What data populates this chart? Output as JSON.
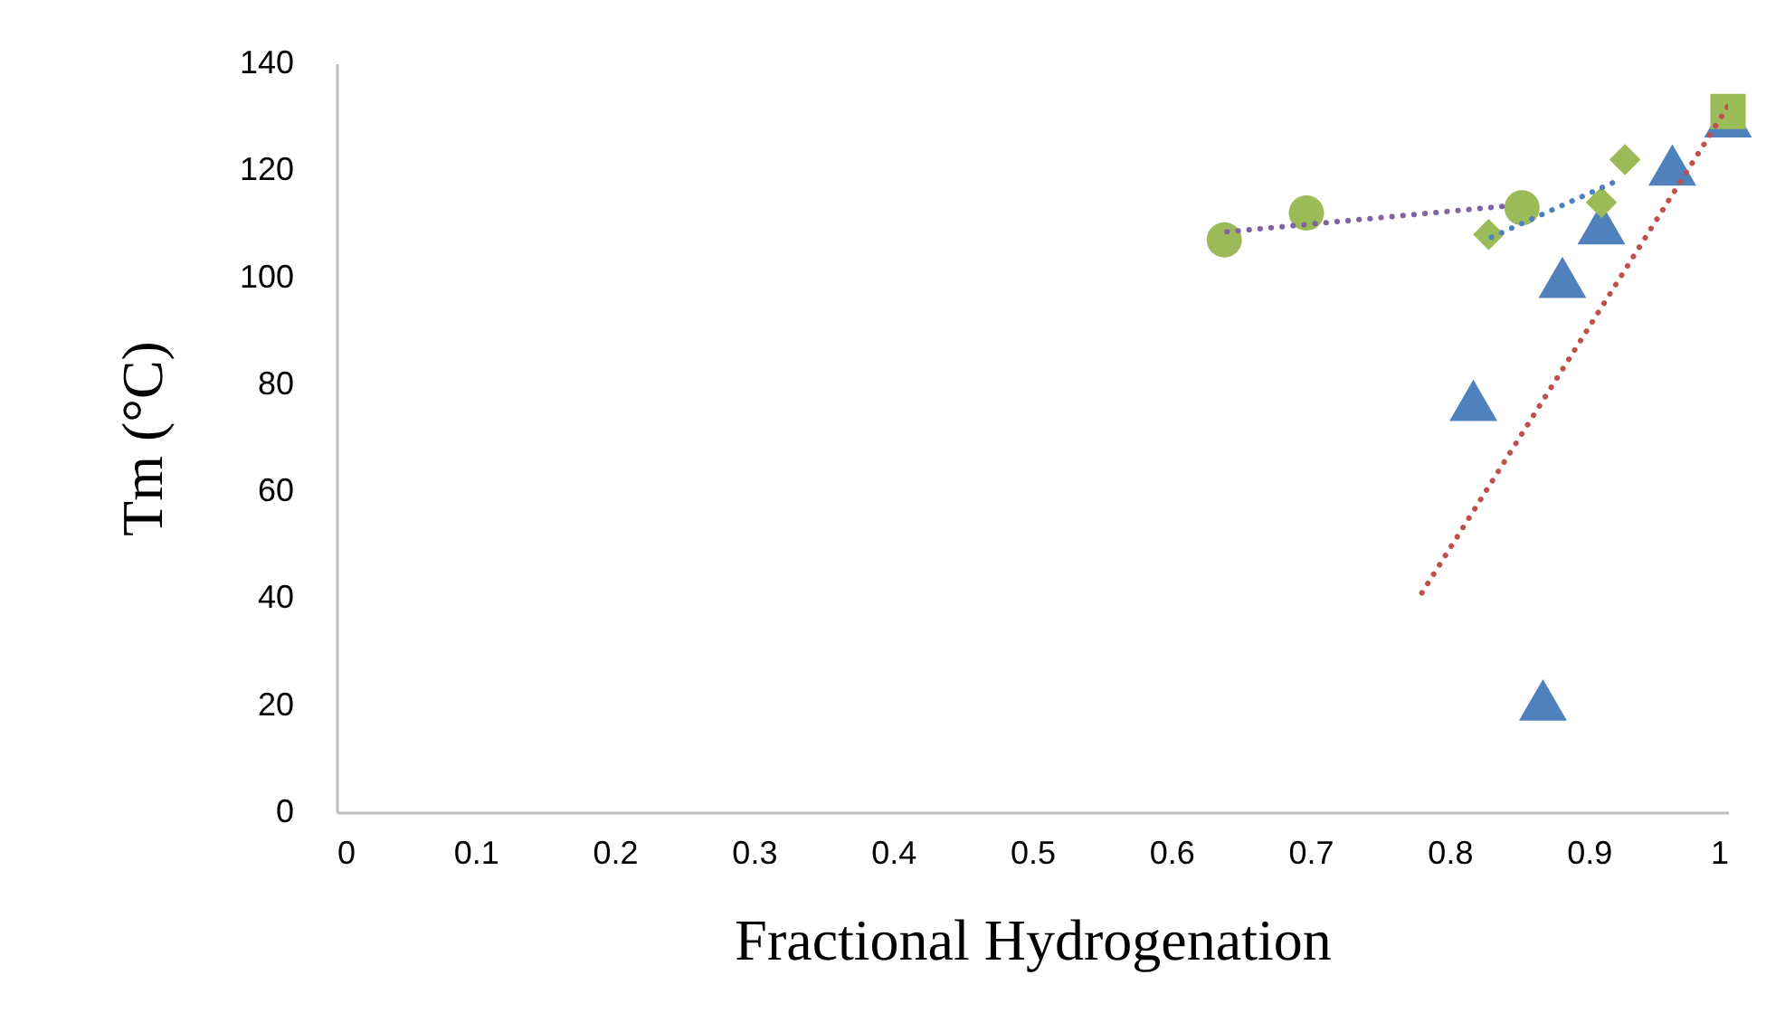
{
  "chart_data": {
    "type": "scatter",
    "xlabel": "Fractional Hydrogenation",
    "ylabel": "Tm (°C)",
    "xlim": [
      0,
      1
    ],
    "xticks": [
      0,
      0.1,
      0.2,
      0.3,
      0.4,
      0.5,
      0.6,
      0.7,
      0.8,
      0.9,
      1
    ],
    "ylim": [
      0,
      140
    ],
    "yticks": [
      0,
      20,
      40,
      60,
      80,
      100,
      120,
      140
    ],
    "grid": false,
    "series": [
      {
        "type": "line",
        "line_style": "dotted",
        "marker": "none",
        "color": "#c0504d",
        "x": [
          0.78,
          1.0
        ],
        "values": [
          41,
          132
        ]
      },
      {
        "type": "line",
        "line_style": "dotted",
        "marker": "none",
        "color": "#8064a2",
        "x": [
          0.64,
          0.84
        ],
        "values": [
          108.5,
          113.3
        ]
      },
      {
        "type": "line",
        "line_style": "dotted",
        "marker": "none",
        "color": "#4f81bd",
        "x": [
          0.83,
          0.92
        ],
        "values": [
          107.5,
          118
        ]
      },
      {
        "marker": "triangle",
        "color": "#4f81bd",
        "x": [
          0.817,
          0.867,
          0.881,
          0.909,
          0.96,
          1.0
        ],
        "values": [
          77,
          21,
          100,
          110,
          121,
          130
        ]
      },
      {
        "marker": "circle",
        "color": "#9bbb59",
        "x": [
          0.638,
          0.697,
          0.852
        ],
        "values": [
          107,
          112,
          113
        ]
      },
      {
        "marker": "diamond",
        "color": "#9bbb59",
        "x": [
          0.828,
          0.909,
          0.926
        ],
        "values": [
          108,
          114,
          122
        ]
      },
      {
        "marker": "square",
        "color": "#9bbb59",
        "x": [
          1.0
        ],
        "values": [
          131
        ]
      }
    ]
  }
}
